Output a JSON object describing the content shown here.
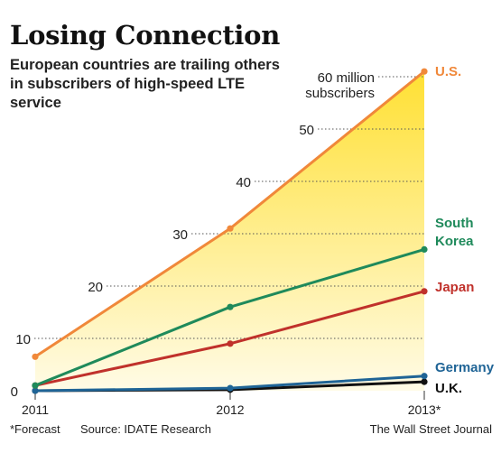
{
  "chart_data": {
    "type": "line",
    "title": "Losing Connection",
    "subtitle": "European countries are trailing others in subscribers of high-speed LTE service",
    "x": [
      "2011",
      "2012",
      "2013*"
    ],
    "ylim": [
      0,
      62
    ],
    "yticks": [
      {
        "value": 0,
        "label": "0"
      },
      {
        "value": 10,
        "label": "10"
      },
      {
        "value": 20,
        "label": "20"
      },
      {
        "value": 30,
        "label": "30"
      },
      {
        "value": 40,
        "label": "40"
      },
      {
        "value": 50,
        "label": "50"
      },
      {
        "value": 60,
        "label": "60 million",
        "label2": "subscribers"
      }
    ],
    "series": [
      {
        "name": "U.S.",
        "values": [
          6.5,
          31,
          61
        ],
        "color": "#f0883a"
      },
      {
        "name": "South Korea",
        "label_lines": [
          "South",
          "Korea"
        ],
        "values": [
          1,
          16,
          27
        ],
        "color": "#1f8a5b"
      },
      {
        "name": "Japan",
        "values": [
          1,
          9,
          19
        ],
        "color": "#c0312b"
      },
      {
        "name": "Germany",
        "values": [
          0,
          0.5,
          2.8
        ],
        "color": "#1f6496"
      },
      {
        "name": "U.K.",
        "values": [
          0,
          0.2,
          1.7
        ],
        "color": "#111111"
      }
    ]
  },
  "footer": {
    "note": "*Forecast",
    "source": "Source: IDATE Research",
    "publisher": "The Wall Street Journal"
  }
}
